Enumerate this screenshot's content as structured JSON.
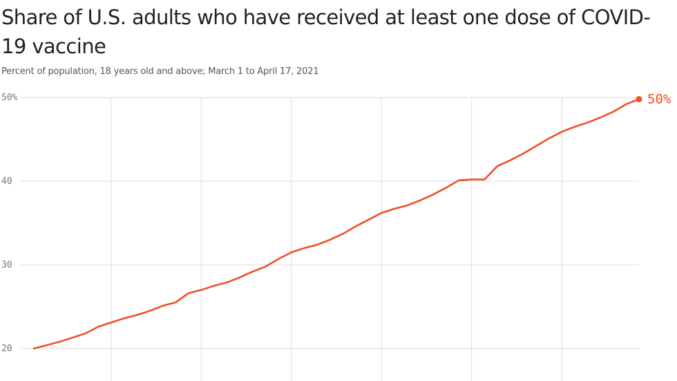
{
  "title": "Share of U.S. adults who have received at least one dose of COVID-19 vaccine",
  "subtitle": "Percent of population, 18 years old and above; March 1 to April 17, 2021",
  "colors": {
    "line": "#f04e23",
    "grid": "#dddddd",
    "text": "#222222"
  },
  "chart_data": {
    "type": "line",
    "title": "Share of U.S. adults who have received at least one dose of COVID-19 vaccine",
    "subtitle": "Percent of population, 18 years old and above; March 1 to April 17, 2021",
    "xlabel": "",
    "ylabel": "",
    "x": [
      "2021-03-01",
      "2021-03-02",
      "2021-03-03",
      "2021-03-04",
      "2021-03-05",
      "2021-03-06",
      "2021-03-07",
      "2021-03-08",
      "2021-03-09",
      "2021-03-10",
      "2021-03-11",
      "2021-03-12",
      "2021-03-13",
      "2021-03-14",
      "2021-03-15",
      "2021-03-16",
      "2021-03-17",
      "2021-03-18",
      "2021-03-19",
      "2021-03-20",
      "2021-03-21",
      "2021-03-22",
      "2021-03-23",
      "2021-03-24",
      "2021-03-25",
      "2021-03-26",
      "2021-03-27",
      "2021-03-28",
      "2021-03-29",
      "2021-03-30",
      "2021-03-31",
      "2021-04-01",
      "2021-04-02",
      "2021-04-03",
      "2021-04-04",
      "2021-04-05",
      "2021-04-06",
      "2021-04-07",
      "2021-04-08",
      "2021-04-09",
      "2021-04-10",
      "2021-04-11",
      "2021-04-12",
      "2021-04-13",
      "2021-04-14",
      "2021-04-15",
      "2021-04-16",
      "2021-04-17"
    ],
    "series": [
      {
        "values": [
          20.0,
          20.4,
          20.8,
          21.3,
          21.8,
          22.6,
          23.1,
          23.6,
          24.0,
          24.5,
          25.1,
          25.5,
          26.6,
          27.0,
          27.5,
          27.9,
          28.5,
          29.2,
          29.8,
          30.7,
          31.5,
          32.0,
          32.4,
          33.0,
          33.7,
          34.6,
          35.4,
          36.2,
          36.7,
          37.1,
          37.7,
          38.4,
          39.2,
          40.1,
          40.2,
          40.2,
          41.8,
          42.5,
          43.3,
          44.2,
          45.1,
          45.9,
          46.5,
          47.0,
          47.6,
          48.3,
          49.2,
          49.8
        ]
      }
    ],
    "y_ticks": [
      "50%",
      "40",
      "30",
      "20"
    ],
    "y_tick_values": [
      50,
      40,
      30,
      20
    ],
    "ylim": [
      20,
      50
    ],
    "end_label": "50%",
    "grid": {
      "horizontal": true,
      "vertical": true
    },
    "legend": "none"
  }
}
